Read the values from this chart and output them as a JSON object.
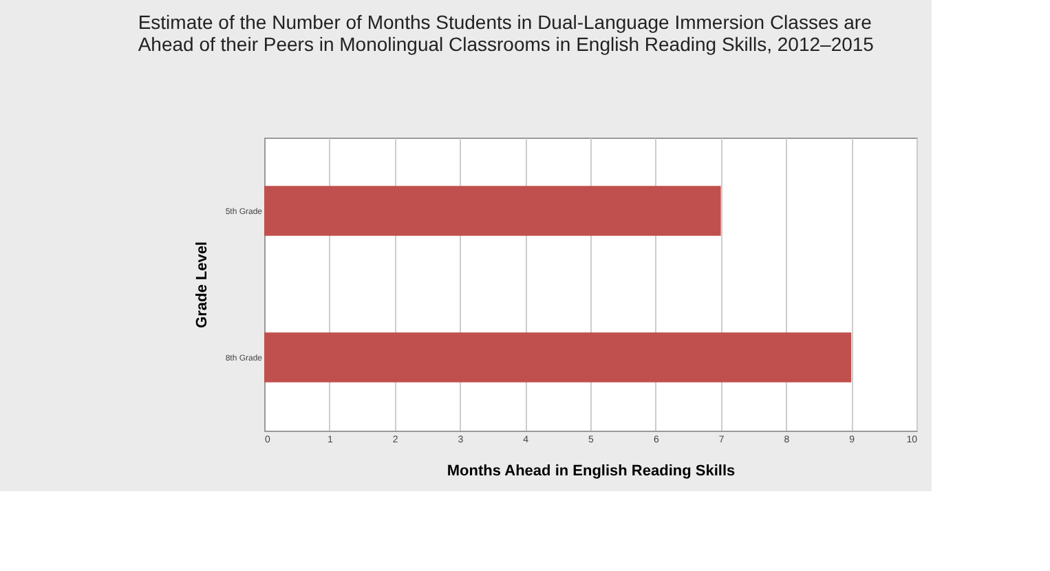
{
  "chart_data": {
    "type": "bar",
    "orientation": "horizontal",
    "title": [
      "Estimate of the Number of Months Students in Dual-Language Immersion Classes are",
      "Ahead of their Peers in Monolingual Classrooms in English Reading Skills, 2012–2015"
    ],
    "categories": [
      "5th Grade",
      "8th Grade"
    ],
    "values": [
      7,
      9
    ],
    "color": "#c0504d",
    "xlim": [
      0,
      10
    ],
    "xticks": [
      0,
      1,
      2,
      3,
      4,
      5,
      6,
      7,
      8,
      9,
      10
    ],
    "grid": "x",
    "xlabel": "Months Ahead in English Reading Skills",
    "ylabel": "Grade Level"
  }
}
